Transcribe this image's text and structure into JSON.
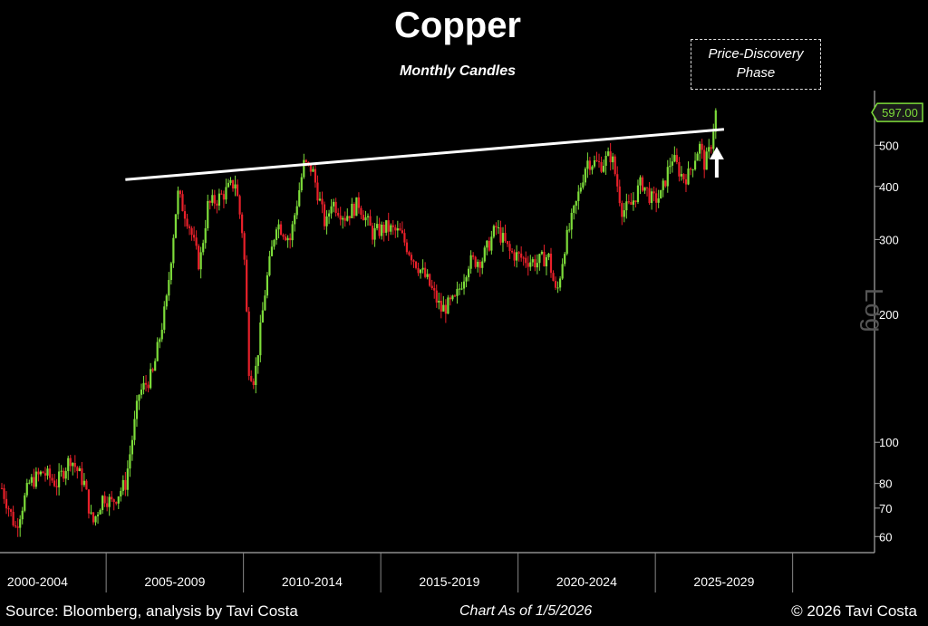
{
  "chart_data": {
    "type": "candlestick",
    "title": "Copper",
    "subtitle": "Monthly Candles",
    "y_scale": "log",
    "y_scale_label": "Log",
    "ylim": [
      55,
      640
    ],
    "y_ticks": [
      60,
      70,
      80,
      100,
      200,
      300,
      400,
      500
    ],
    "x_tick_labels": [
      "2000-2004",
      "2005-2009",
      "2010-2014",
      "2015-2019",
      "2020-2024",
      "2025-2029"
    ],
    "x_start": 2000.0,
    "last_price": "597.00",
    "annotation": [
      "Price-Discovery",
      "Phase"
    ],
    "up_color": "#7ddc3a",
    "down_color": "#e8202a",
    "trendline": {
      "from": {
        "x": 2004.5,
        "y": 415
      },
      "to": {
        "x": 2026.3,
        "y": 545
      }
    },
    "arrow_x": 2026.3,
    "price_path": [
      [
        2000.0,
        78
      ],
      [
        2000.5,
        63
      ],
      [
        2001.0,
        80
      ],
      [
        2001.5,
        85
      ],
      [
        2002.0,
        80
      ],
      [
        2002.5,
        92
      ],
      [
        2003.0,
        80
      ],
      [
        2003.3,
        64
      ],
      [
        2003.7,
        75
      ],
      [
        2004.0,
        72
      ],
      [
        2004.5,
        80
      ],
      [
        2005.0,
        130
      ],
      [
        2005.5,
        145
      ],
      [
        2006.0,
        215
      ],
      [
        2006.4,
        385
      ],
      [
        2006.8,
        330
      ],
      [
        2007.2,
        260
      ],
      [
        2007.5,
        360
      ],
      [
        2008.0,
        380
      ],
      [
        2008.5,
        410
      ],
      [
        2008.8,
        300
      ],
      [
        2009.0,
        150
      ],
      [
        2009.2,
        140
      ],
      [
        2009.6,
        230
      ],
      [
        2010.0,
        330
      ],
      [
        2010.5,
        300
      ],
      [
        2011.0,
        450
      ],
      [
        2011.3,
        440
      ],
      [
        2011.8,
        320
      ],
      [
        2012.0,
        370
      ],
      [
        2012.5,
        340
      ],
      [
        2013.0,
        365
      ],
      [
        2013.5,
        310
      ],
      [
        2014.0,
        320
      ],
      [
        2014.5,
        310
      ],
      [
        2015.0,
        270
      ],
      [
        2015.5,
        240
      ],
      [
        2016.0,
        205
      ],
      [
        2016.5,
        215
      ],
      [
        2017.0,
        265
      ],
      [
        2017.5,
        270
      ],
      [
        2018.0,
        320
      ],
      [
        2018.5,
        280
      ],
      [
        2019.0,
        270
      ],
      [
        2019.5,
        265
      ],
      [
        2019.9,
        275
      ],
      [
        2020.2,
        220
      ],
      [
        2020.5,
        290
      ],
      [
        2020.9,
        360
      ],
      [
        2021.3,
        460
      ],
      [
        2021.8,
        450
      ],
      [
        2022.2,
        475
      ],
      [
        2022.6,
        350
      ],
      [
        2022.9,
        360
      ],
      [
        2023.3,
        410
      ],
      [
        2023.7,
        370
      ],
      [
        2024.0,
        380
      ],
      [
        2024.4,
        470
      ],
      [
        2024.8,
        420
      ],
      [
        2025.0,
        425
      ],
      [
        2025.4,
        500
      ],
      [
        2025.6,
        450
      ],
      [
        2025.8,
        490
      ],
      [
        2026.0,
        597
      ]
    ]
  },
  "footer": {
    "source": "Source: Bloomberg, analysis by Tavi Costa",
    "as_of": "Chart As of 1/5/2026",
    "copyright": "© 2026 Tavi Costa"
  }
}
